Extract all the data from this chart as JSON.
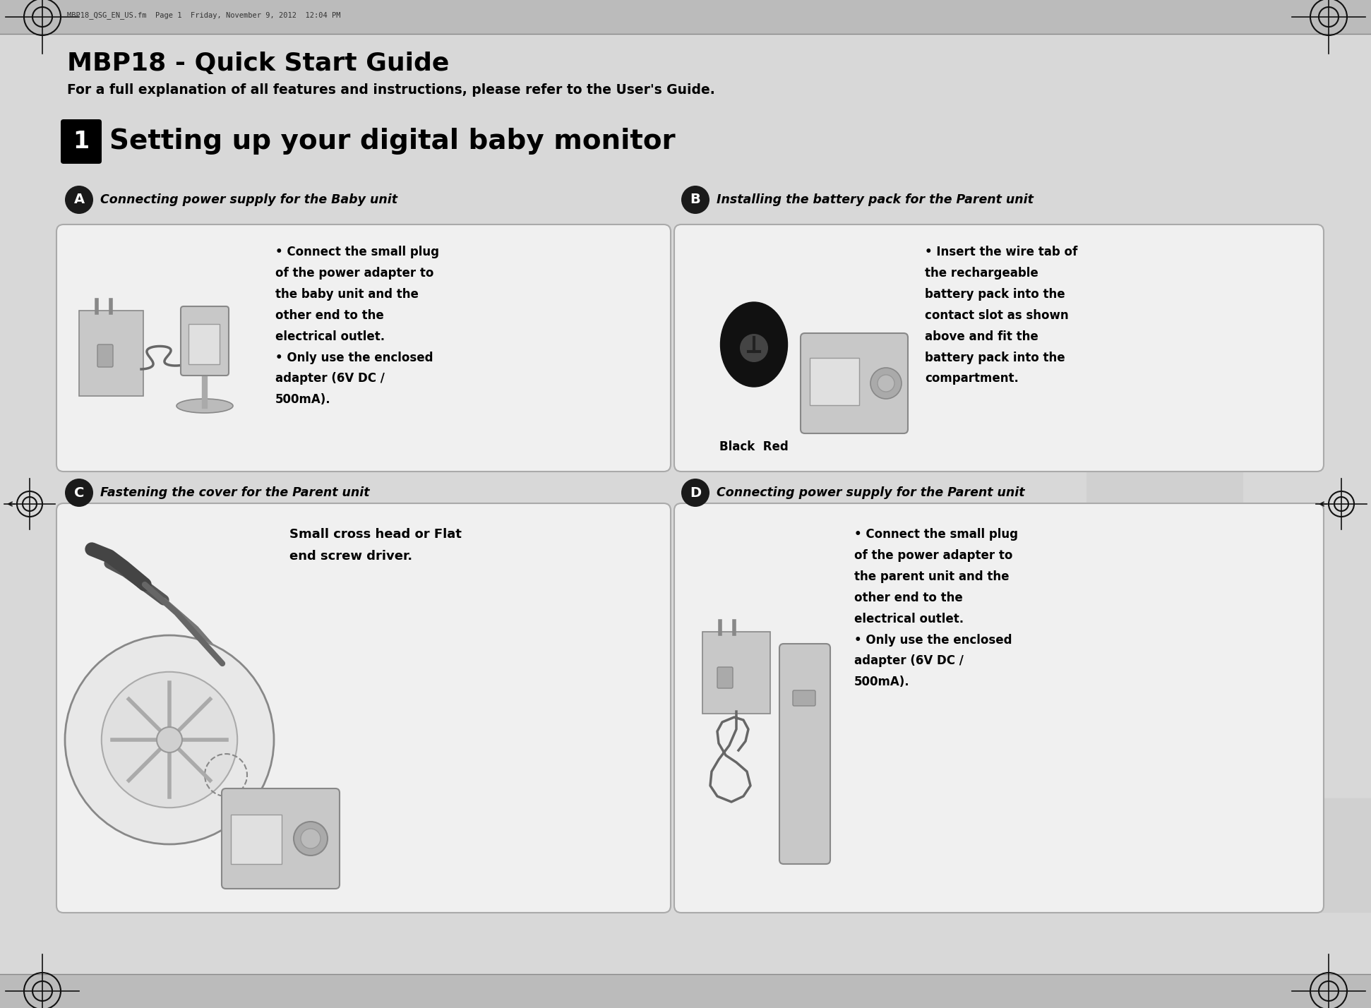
{
  "bg_outer": "#b0b0b0",
  "bg_main": "#d8d8d8",
  "box_bg": "#f0f0f0",
  "white": "#ffffff",
  "black": "#000000",
  "dark": "#1a1a1a",
  "gray_mid": "#888888",
  "gray_light": "#cccccc",
  "gray_dark": "#555555",
  "title": "MBP18 - Quick Start Guide",
  "subtitle": "For a full explanation of all features and instructions, please refer to the User's Guide.",
  "section_number": "1",
  "section_title": "Setting up your digital baby monitor",
  "header_file": "MBP18_QSG_EN_US.fm  Page 1  Friday, November 9, 2012  12:04 PM",
  "section_A_title": "Connecting power supply for the Baby unit",
  "section_B_title": "Installing the battery pack for the Parent unit",
  "section_C_title": "Fastening the cover for the Parent unit",
  "section_D_title": "Connecting power supply for the Parent unit",
  "section_A_text": "• Connect the small plug\nof the power adapter to\nthe baby unit and the\nother end to the\nelectrical outlet.\n• Only use the enclosed\nadapter (6V DC /\n500mA).",
  "section_B_text": "• Insert the wire tab of\nthe rechargeable\nbattery pack into the\ncontact slot as shown\nabove and fit the\nbattery pack into the\ncompartment.",
  "section_B_label": "Black  Red",
  "section_C_text": "Small cross head or Flat\nend screw driver.",
  "section_D_text": "• Connect the small plug\nof the power adapter to\nthe parent unit and the\nother end to the\nelectrical outlet.\n• Only use the enclosed\nadapter (6V DC /\n500mA).",
  "circle_label_bg": "#1a1a1a",
  "watermark_color": "#c8c8c8"
}
